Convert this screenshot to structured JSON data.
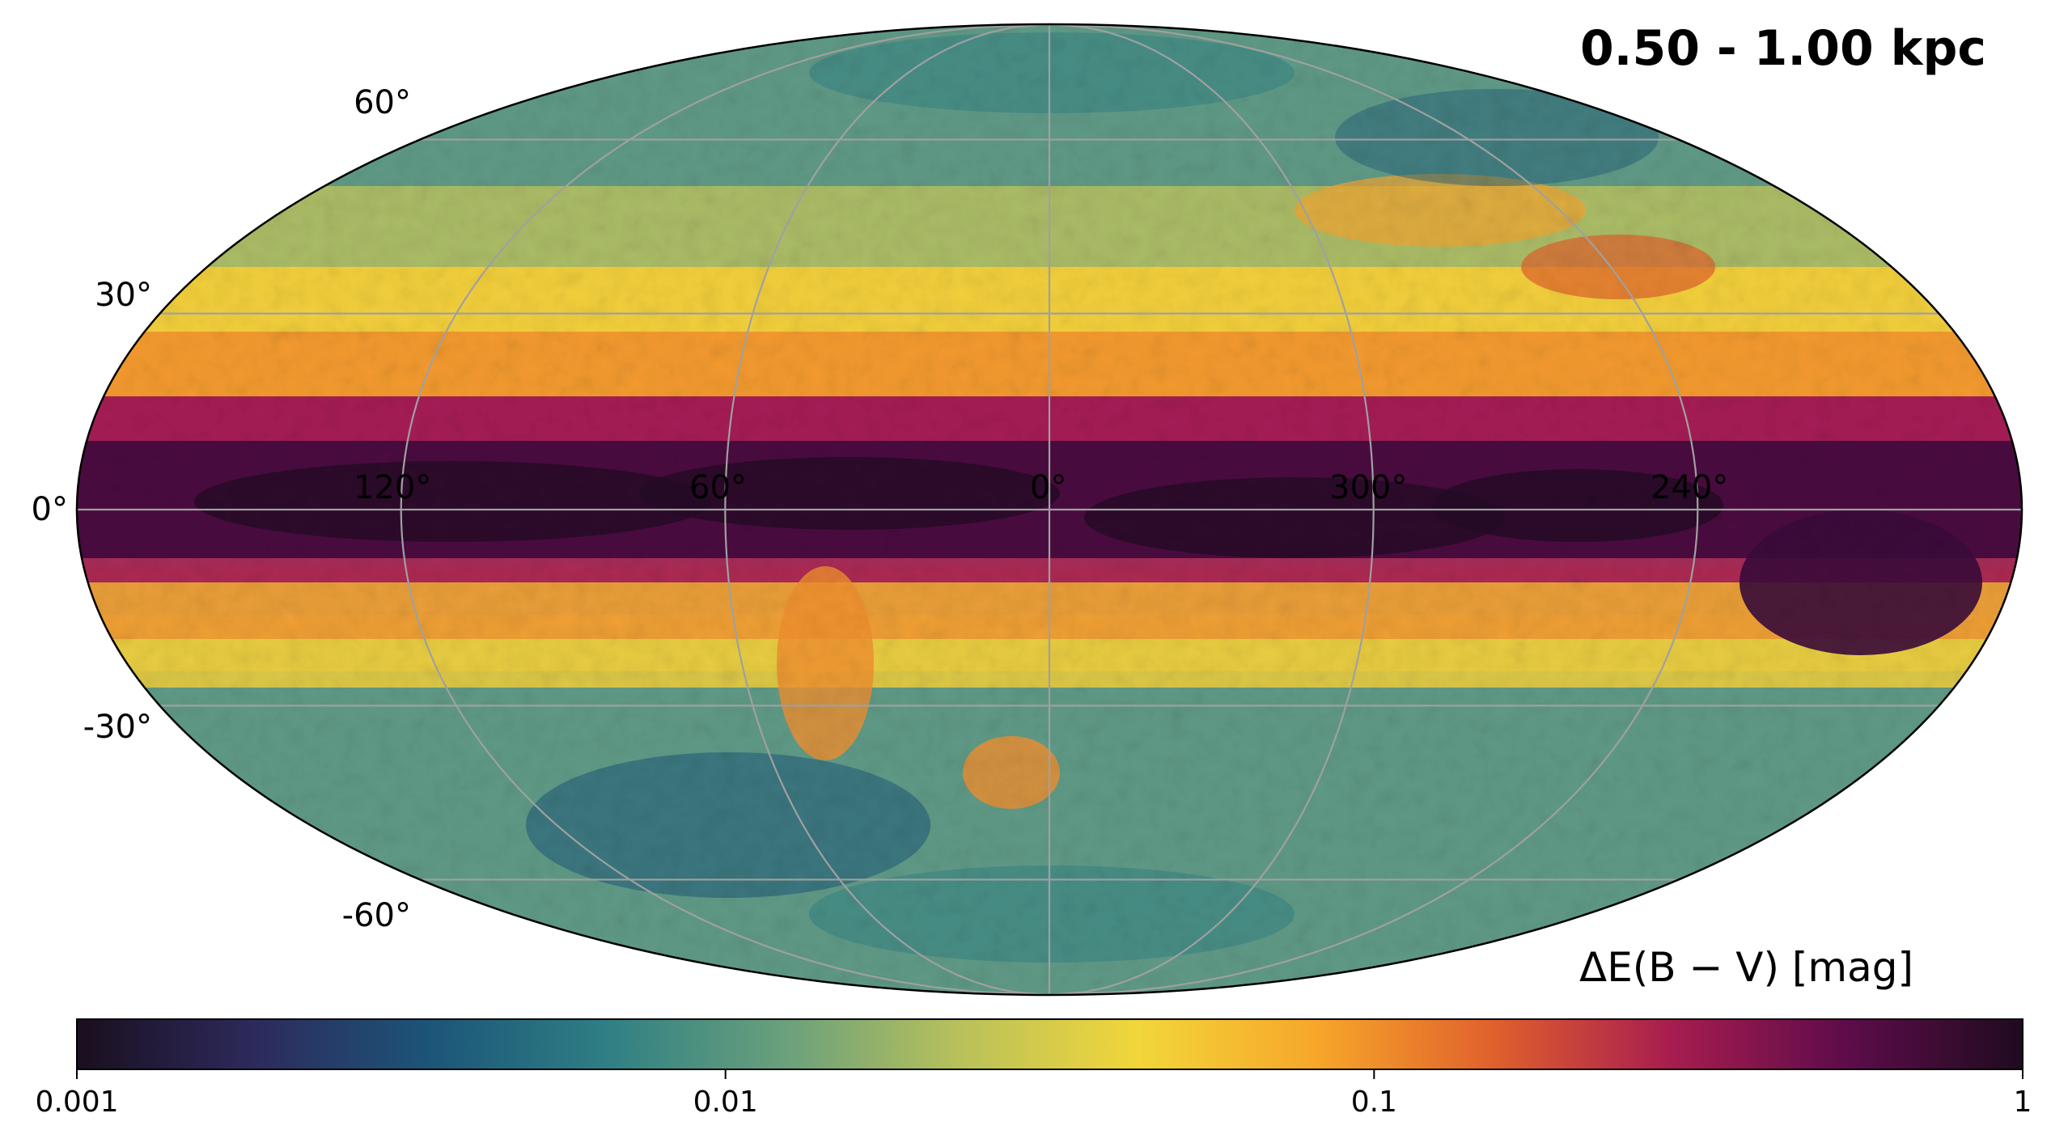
{
  "title": "0.50 - 1.00 kpc",
  "projection": "mollweide",
  "coordinate_system": "galactic",
  "latitude_labels": [
    "60°",
    "30°",
    "0°",
    "-30°",
    "-60°"
  ],
  "longitude_labels": [
    "120°",
    "60°",
    "0°",
    "300°",
    "240°"
  ],
  "gridline_color": "#a0a0a0",
  "colorbar": {
    "label": "ΔE(B − V) [mag]",
    "scale": "log",
    "min": 0.001,
    "max": 1,
    "ticks": [
      "0.001",
      "0.01",
      "0.1",
      "1"
    ],
    "colormap_stops": [
      "#1a0f1e",
      "#2d2a5c",
      "#1c5578",
      "#2f7f84",
      "#6aa07c",
      "#b9c15a",
      "#f2d63a",
      "#f7a72a",
      "#e0612c",
      "#a81d4f",
      "#5e0c4a",
      "#1f0b1f"
    ]
  }
}
